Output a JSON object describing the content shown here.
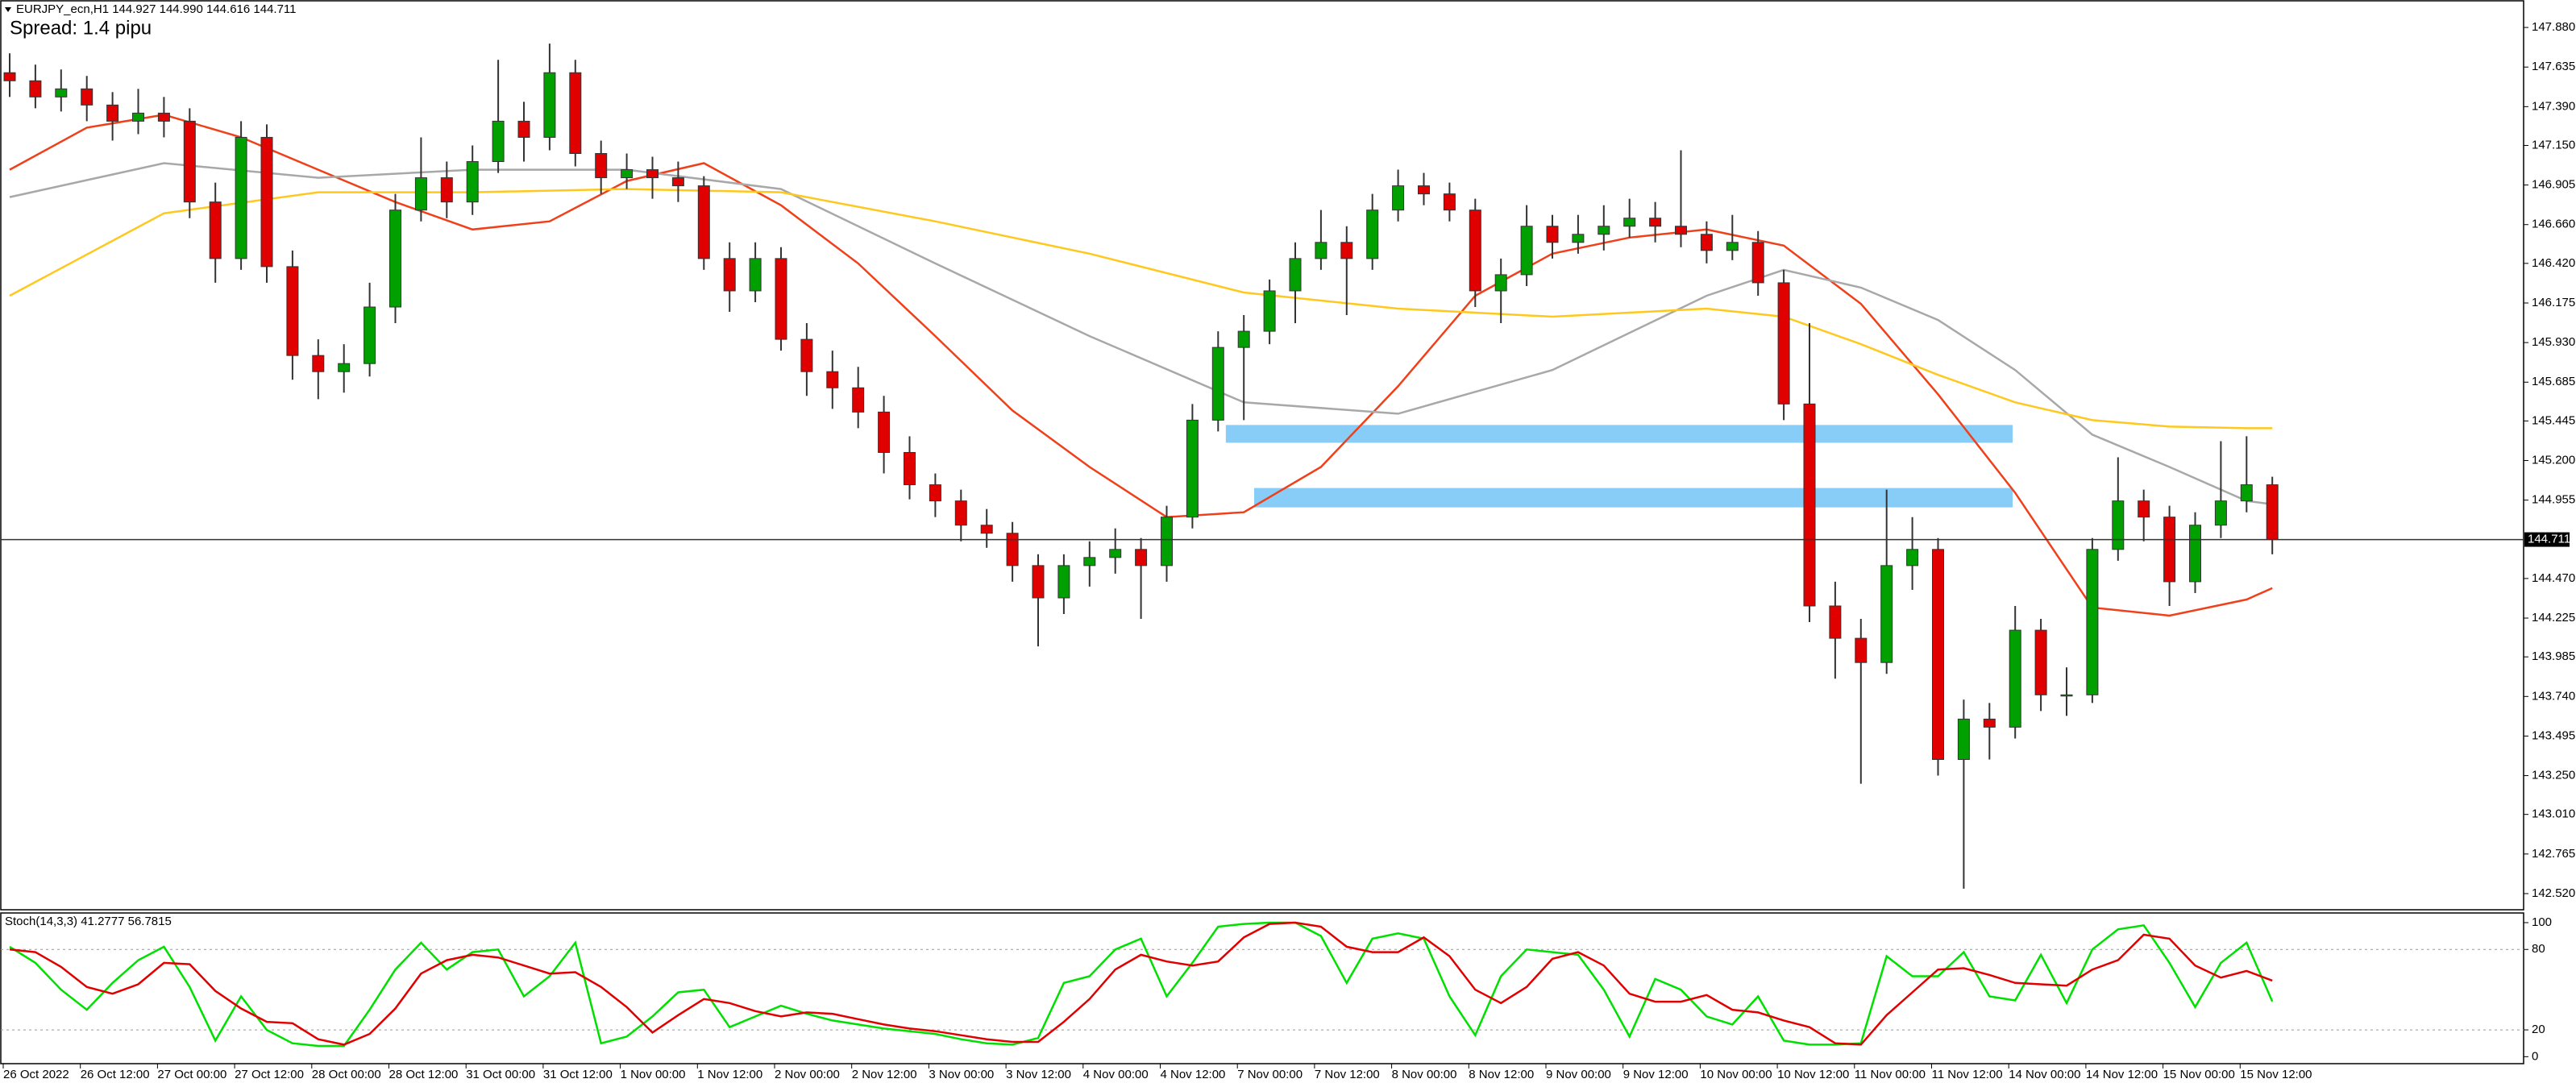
{
  "chart_data": [
    {
      "type": "candlestick",
      "title": "EURJPY_ecn,H1  144.927 144.990 144.616 144.711",
      "subtitle": "Spread: 1.4 pipu",
      "bull_color": "#00a000",
      "bear_color": "#e00000",
      "wick_color": "#333333",
      "categories": [
        "26 Oct 2022",
        null,
        null,
        "26 Oct 12:00",
        null,
        null,
        "27 Oct 00:00",
        null,
        null,
        "27 Oct 12:00",
        null,
        null,
        "28 Oct 00:00",
        null,
        null,
        "28 Oct 12:00",
        null,
        null,
        "31 Oct 00:00",
        null,
        null,
        "31 Oct 12:00",
        null,
        null,
        "1 Nov 00:00",
        null,
        null,
        "1 Nov 12:00",
        null,
        null,
        "2 Nov 00:00",
        null,
        null,
        "2 Nov 12:00",
        null,
        null,
        "3 Nov 00:00",
        null,
        null,
        "3 Nov 12:00",
        null,
        null,
        "4 Nov 00:00",
        null,
        null,
        "4 Nov 12:00",
        null,
        null,
        "7 Nov 00:00",
        null,
        null,
        "7 Nov 12:00",
        null,
        null,
        "8 Nov 00:00",
        null,
        null,
        "8 Nov 12:00",
        null,
        null,
        "9 Nov 00:00",
        null,
        null,
        "9 Nov 12:00",
        null,
        null,
        "10 Nov 00:00",
        null,
        null,
        "10 Nov 12:00",
        null,
        null,
        "11 Nov 00:00",
        null,
        null,
        "11 Nov 12:00",
        null,
        null,
        "14 Nov 00:00",
        null,
        null,
        "14 Nov 12:00",
        null,
        null,
        "15 Nov 00:00",
        null,
        null,
        "15 Nov 12:00",
        null
      ],
      "open": [
        147.6,
        147.55,
        147.45,
        147.5,
        147.4,
        147.3,
        147.35,
        147.3,
        146.8,
        146.45,
        147.2,
        146.4,
        145.85,
        145.75,
        145.8,
        146.15,
        146.75,
        146.95,
        146.8,
        147.05,
        147.3,
        147.2,
        147.6,
        147.1,
        146.95,
        147.0,
        146.95,
        146.9,
        146.45,
        146.25,
        146.45,
        145.95,
        145.75,
        145.65,
        145.5,
        145.25,
        145.05,
        144.95,
        144.8,
        144.75,
        144.55,
        144.35,
        144.55,
        144.6,
        144.65,
        144.55,
        144.85,
        145.45,
        145.9,
        146.0,
        146.25,
        146.45,
        146.55,
        146.45,
        146.75,
        146.9,
        146.85,
        146.75,
        146.25,
        146.35,
        146.65,
        146.55,
        146.6,
        146.65,
        146.7,
        146.65,
        146.6,
        146.5,
        146.55,
        146.3,
        145.55,
        144.3,
        144.1,
        143.95,
        144.55,
        144.65,
        143.35,
        143.6,
        143.55,
        144.15,
        143.75,
        143.75,
        144.65,
        144.95,
        144.85,
        144.45,
        144.8,
        144.95,
        145.05
      ],
      "high": [
        147.72,
        147.65,
        147.62,
        147.58,
        147.48,
        147.5,
        147.45,
        147.38,
        146.92,
        147.3,
        147.28,
        146.5,
        145.95,
        145.92,
        146.3,
        146.85,
        147.2,
        147.05,
        147.15,
        147.68,
        147.42,
        147.78,
        147.68,
        147.18,
        147.1,
        147.08,
        147.05,
        146.96,
        146.55,
        146.55,
        146.52,
        146.05,
        145.88,
        145.78,
        145.6,
        145.35,
        145.12,
        145.02,
        144.9,
        144.82,
        144.62,
        144.62,
        144.7,
        144.78,
        144.72,
        144.92,
        145.55,
        146.0,
        146.1,
        146.32,
        146.55,
        146.75,
        146.65,
        146.85,
        147.0,
        146.98,
        146.92,
        146.82,
        146.45,
        146.78,
        146.72,
        146.72,
        146.78,
        146.82,
        146.8,
        147.12,
        146.68,
        146.72,
        146.62,
        146.38,
        146.05,
        144.45,
        144.22,
        145.02,
        144.85,
        144.72,
        143.72,
        143.7,
        144.3,
        144.22,
        143.92,
        144.72,
        145.22,
        145.02,
        144.92,
        144.88,
        145.32,
        145.35,
        145.1
      ],
      "low": [
        147.45,
        147.38,
        147.36,
        147.3,
        147.18,
        147.22,
        147.2,
        146.7,
        146.3,
        146.38,
        146.3,
        145.7,
        145.58,
        145.62,
        145.72,
        146.05,
        146.68,
        146.7,
        146.72,
        146.98,
        147.05,
        147.12,
        147.02,
        146.85,
        146.88,
        146.82,
        146.8,
        146.38,
        146.12,
        146.18,
        145.88,
        145.6,
        145.52,
        145.4,
        145.12,
        144.96,
        144.85,
        144.7,
        144.66,
        144.45,
        144.05,
        144.25,
        144.42,
        144.5,
        144.22,
        144.45,
        144.78,
        145.38,
        145.45,
        145.92,
        146.05,
        146.38,
        146.1,
        146.38,
        146.68,
        146.78,
        146.68,
        146.15,
        146.05,
        146.28,
        146.45,
        146.48,
        146.5,
        146.58,
        146.55,
        146.52,
        146.42,
        146.44,
        146.22,
        145.45,
        144.2,
        143.85,
        143.2,
        143.88,
        144.4,
        143.25,
        142.55,
        143.35,
        143.48,
        143.65,
        143.62,
        143.7,
        144.58,
        144.7,
        144.3,
        144.38,
        144.72,
        144.88,
        144.62
      ],
      "close": [
        147.55,
        147.45,
        147.5,
        147.4,
        147.3,
        147.35,
        147.3,
        146.8,
        146.45,
        147.2,
        146.4,
        145.85,
        145.75,
        145.8,
        146.15,
        146.75,
        146.95,
        146.8,
        147.05,
        147.3,
        147.2,
        147.6,
        147.1,
        146.95,
        147.0,
        146.95,
        146.9,
        146.45,
        146.25,
        146.45,
        145.95,
        145.75,
        145.65,
        145.5,
        145.25,
        145.05,
        144.95,
        144.8,
        144.75,
        144.55,
        144.35,
        144.55,
        144.6,
        144.65,
        144.55,
        144.85,
        145.45,
        145.9,
        146.0,
        146.25,
        146.45,
        146.55,
        146.45,
        146.75,
        146.9,
        146.85,
        146.75,
        146.25,
        146.35,
        146.65,
        146.55,
        146.6,
        146.65,
        146.7,
        146.65,
        146.6,
        146.5,
        146.55,
        146.3,
        145.55,
        144.3,
        144.1,
        143.95,
        144.55,
        144.65,
        143.35,
        143.6,
        143.55,
        144.15,
        143.75,
        143.75,
        144.65,
        144.95,
        144.85,
        144.45,
        144.8,
        144.95,
        145.05,
        144.711
      ],
      "lines": [
        {
          "color": "#f0401a",
          "x": [
            0,
            3,
            6,
            9,
            12,
            15,
            18,
            21,
            24,
            27,
            30,
            33,
            36,
            39,
            42,
            45,
            48,
            51,
            54,
            57,
            60,
            63,
            66,
            69,
            72,
            75,
            78,
            81,
            84,
            87,
            88
          ],
          "values": [
            147.0,
            147.26,
            147.34,
            147.2,
            147.0,
            146.8,
            146.63,
            146.68,
            146.93,
            147.04,
            146.78,
            146.42,
            145.97,
            145.51,
            145.16,
            144.85,
            144.88,
            145.16,
            145.66,
            146.22,
            146.48,
            146.58,
            146.63,
            146.53,
            146.17,
            145.61,
            145.0,
            144.29,
            144.24,
            144.34,
            144.41
          ]
        },
        {
          "color": "#a8a8a8",
          "x": [
            0,
            6,
            12,
            18,
            24,
            30,
            36,
            42,
            48,
            54,
            60,
            66,
            69,
            72,
            75,
            78,
            81,
            84,
            87,
            88
          ],
          "values": [
            146.83,
            147.04,
            146.95,
            147.0,
            147.0,
            146.88,
            146.42,
            145.97,
            145.56,
            145.49,
            145.76,
            146.22,
            146.38,
            146.27,
            146.07,
            145.76,
            145.36,
            145.16,
            144.95,
            144.93
          ]
        },
        {
          "color": "#ffc81e",
          "x": [
            0,
            6,
            12,
            18,
            24,
            30,
            36,
            42,
            48,
            54,
            60,
            66,
            69,
            72,
            75,
            78,
            81,
            84,
            87,
            88
          ],
          "values": [
            146.22,
            146.73,
            146.86,
            146.86,
            146.88,
            146.86,
            146.68,
            146.48,
            146.24,
            146.14,
            146.09,
            146.14,
            146.09,
            145.92,
            145.73,
            145.56,
            145.45,
            145.41,
            145.4,
            145.4
          ]
        }
      ],
      "zones": [
        {
          "color": "#87cdf7",
          "x": [
            47.3,
            77.9
          ],
          "y": [
            145.31,
            145.42
          ]
        },
        {
          "color": "#87cdf7",
          "x": [
            48.4,
            77.9
          ],
          "y": [
            144.91,
            145.03
          ]
        }
      ],
      "last_price": 144.711,
      "ylim": [
        142.43,
        148.03
      ],
      "yticks": [
        {
          "value": 147.88,
          "label": "147.880"
        },
        147.635,
        {
          "value": 147.39,
          "label": "147.390"
        },
        {
          "value": 147.15,
          "label": "147.150"
        },
        146.905,
        {
          "value": 146.66,
          "label": "146.660"
        },
        {
          "value": 146.42,
          "label": "146.420"
        },
        146.175,
        {
          "value": 145.93,
          "label": "145.930"
        },
        145.685,
        145.445,
        {
          "value": 145.2,
          "label": "145.200"
        },
        144.955,
        {
          "value": 144.47,
          "label": "144.470"
        },
        144.225,
        143.985,
        {
          "value": 143.74,
          "label": "143.740"
        },
        143.495,
        {
          "value": 143.25,
          "label": "143.250"
        },
        {
          "value": 143.01,
          "label": "143.010"
        },
        142.765,
        {
          "value": 142.52,
          "label": "142.520"
        }
      ]
    },
    {
      "type": "line",
      "title": "Stoch(14,3,3) 41.2777 56.7815",
      "series": [
        {
          "color": "#00e000",
          "values": [
            82,
            70,
            50,
            35,
            55,
            72,
            82,
            52,
            12,
            45,
            20,
            10,
            8,
            8,
            35,
            65,
            85,
            65,
            78,
            80,
            45,
            60,
            85,
            10,
            15,
            30,
            48,
            50,
            22,
            30,
            38,
            32,
            27,
            24,
            21,
            19,
            17,
            13,
            10,
            9,
            14,
            55,
            60,
            80,
            88,
            45,
            70,
            97,
            99,
            100,
            100,
            90,
            55,
            88,
            92,
            88,
            45,
            16,
            60,
            80,
            78,
            76,
            50,
            15,
            58,
            50,
            30,
            24,
            45,
            12,
            9,
            9,
            10,
            75,
            60,
            60,
            78,
            45,
            42,
            76,
            40,
            80,
            95,
            98,
            70,
            37,
            70,
            85,
            41.2777
          ]
        },
        {
          "color": "#e00000",
          "values": [
            80,
            78,
            67,
            52,
            47,
            54,
            70,
            69,
            49,
            36,
            26,
            25,
            13,
            9,
            17,
            36,
            62,
            72,
            76,
            74,
            68,
            62,
            63,
            52,
            37,
            18,
            31,
            43,
            40,
            34,
            30,
            33,
            32,
            28,
            24,
            21,
            19,
            16,
            13,
            11,
            11,
            26,
            43,
            65,
            76,
            71,
            68,
            71,
            89,
            99,
            100,
            97,
            82,
            78,
            78,
            89,
            75,
            50,
            40,
            52,
            73,
            78,
            68,
            47,
            41,
            41,
            46,
            35,
            33,
            27,
            22,
            10,
            9,
            31,
            48,
            65,
            66,
            61,
            55,
            54,
            53,
            65,
            72,
            91,
            88,
            68,
            59,
            64,
            56.7815
          ]
        }
      ],
      "levels": [
        20,
        80
      ],
      "ylim": [
        -4,
        106
      ],
      "yticks": [
        0,
        20,
        80,
        100
      ]
    }
  ]
}
